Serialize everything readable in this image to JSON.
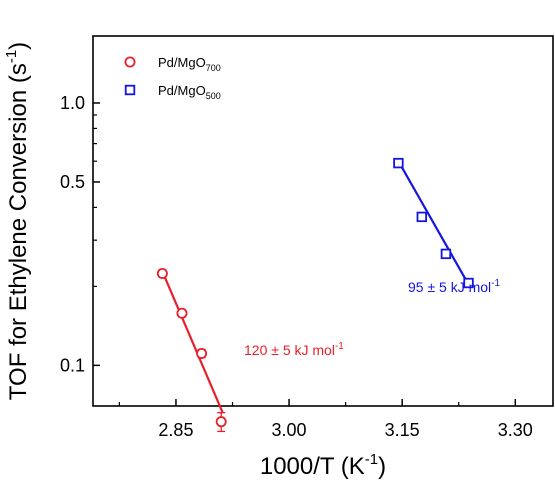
{
  "chart_data": {
    "type": "scatter",
    "xlabel": "1000/T (K",
    "xlabel_sup": "-1",
    "xlabel_end": ")",
    "ylabel": "TOF for Ethylene Conversion (s",
    "ylabel_sup": "-1",
    "ylabel_end": ")",
    "xlim": [
      2.74,
      3.35
    ],
    "ylim": [
      0.07,
      1.8
    ],
    "yscale": "log",
    "xticks": [
      2.85,
      3.0,
      3.15,
      3.3
    ],
    "xtick_labels": [
      "2.85",
      "3.00",
      "3.15",
      "3.30"
    ],
    "yticks": [
      0.1,
      0.5,
      1.0
    ],
    "ytick_labels": [
      "0.1",
      "0.5",
      "1.0"
    ],
    "grid": false,
    "legend_position": "top-left",
    "series": [
      {
        "name": "Pd/MgO",
        "name_sub": "700",
        "marker": "circle",
        "color": "#e8202a",
        "x": [
          2.832,
          2.858,
          2.884,
          2.91
        ],
        "y": [
          0.224,
          0.158,
          0.111,
          0.061
        ],
        "yerr": [
          0.007,
          0.005,
          0.004,
          0.005
        ],
        "fit": {
          "x": [
            2.832,
            2.912
          ],
          "y": [
            0.228,
            0.066
          ]
        },
        "annotation": "120 ± 5 kJ mol",
        "annotation_sup": "-1"
      },
      {
        "name": "Pd/MgO",
        "name_sub": "500",
        "marker": "square",
        "color": "#1515e0",
        "x": [
          3.145,
          3.176,
          3.208,
          3.238
        ],
        "y": [
          0.59,
          0.368,
          0.266,
          0.206
        ],
        "yerr": [
          0.02,
          0.012,
          0.009,
          0.006
        ],
        "fit": {
          "x": [
            3.145,
            3.239
          ],
          "y": [
            0.6,
            0.201
          ]
        },
        "annotation": "95 ± 5 kJ mol",
        "annotation_sup": "-1"
      }
    ]
  }
}
